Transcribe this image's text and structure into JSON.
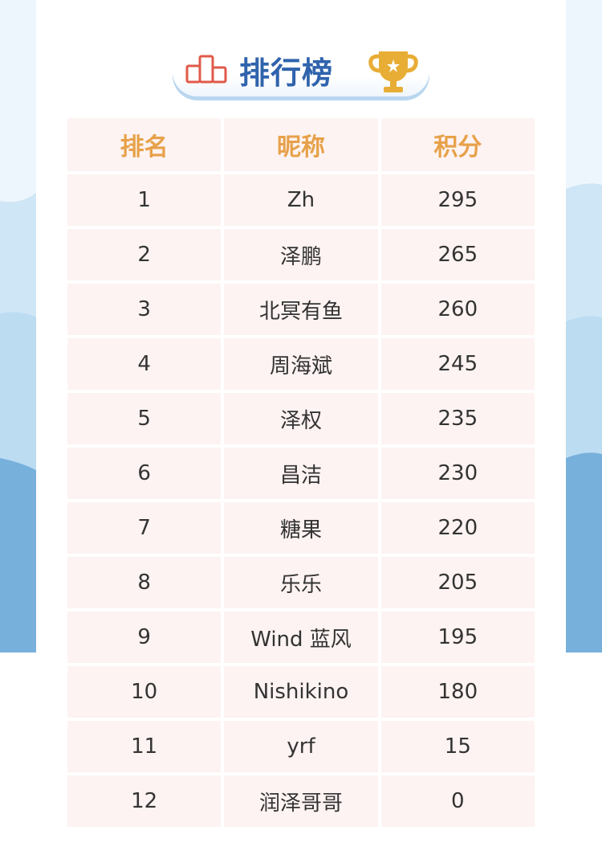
{
  "title": "排行榜",
  "colors": {
    "accent": "#e7a14a",
    "title": "#2f63ad",
    "cell": "#fdf3f2",
    "wave_light": "#bcdcf2",
    "wave_dark": "#78b0dc"
  },
  "icons": {
    "left": "podium-icon",
    "right": "trophy-icon"
  },
  "headers": [
    "排名",
    "昵称",
    "积分"
  ],
  "rows": [
    {
      "rank": "1",
      "name": "Zh",
      "score": "295"
    },
    {
      "rank": "2",
      "name": "泽鹏",
      "score": "265"
    },
    {
      "rank": "3",
      "name": "北冥有鱼",
      "score": "260"
    },
    {
      "rank": "4",
      "name": "周海斌",
      "score": "245"
    },
    {
      "rank": "5",
      "name": "泽权",
      "score": "235"
    },
    {
      "rank": "6",
      "name": "昌洁",
      "score": "230"
    },
    {
      "rank": "7",
      "name": "糖果",
      "score": "220"
    },
    {
      "rank": "8",
      "name": "乐乐",
      "score": "205"
    },
    {
      "rank": "9",
      "name": "Wind 蓝风",
      "score": "195"
    },
    {
      "rank": "10",
      "name": "Nishikino",
      "score": "180"
    },
    {
      "rank": "11",
      "name": "yrf",
      "score": "15"
    },
    {
      "rank": "12",
      "name": "润泽哥哥",
      "score": "0"
    }
  ]
}
